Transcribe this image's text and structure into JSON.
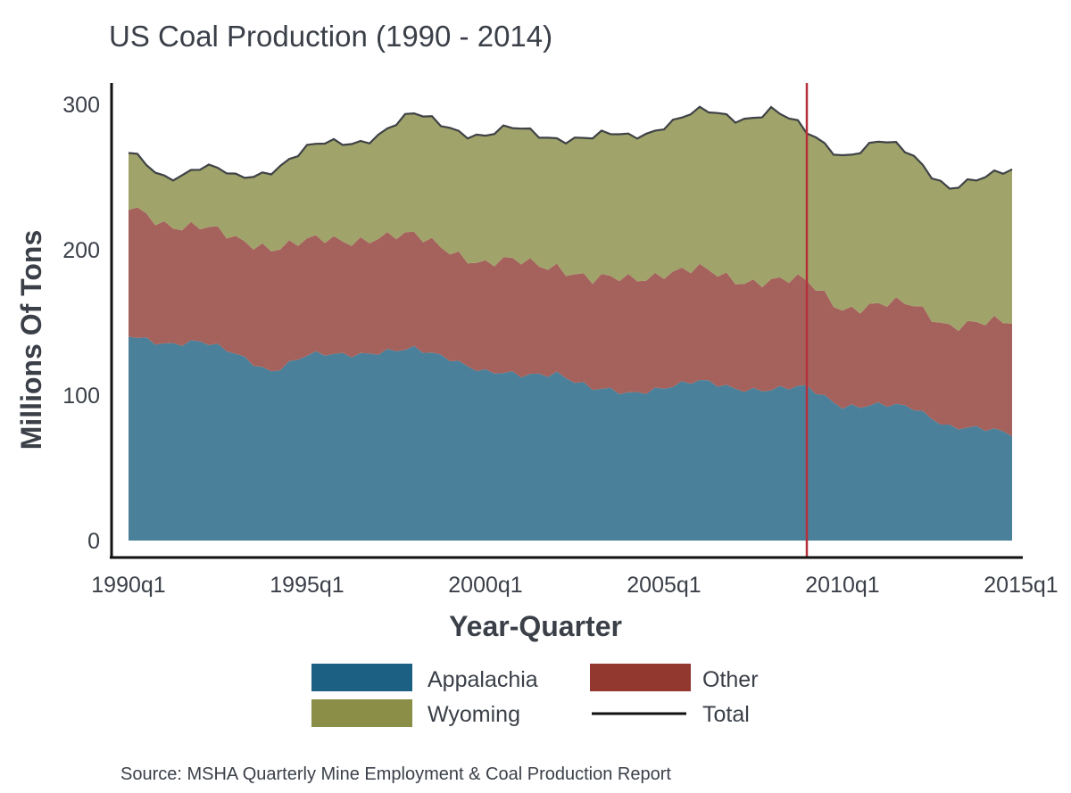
{
  "chart_data": {
    "type": "area",
    "title": "US Coal Production (1990 - 2014)",
    "xlabel": "Year-Quarter",
    "ylabel": "Millions Of Tons",
    "ylim": [
      0,
      315
    ],
    "yticks": [
      0,
      100,
      200,
      300
    ],
    "xticks": [
      {
        "label": "1990q1",
        "year": 1990
      },
      {
        "label": "1995q1",
        "year": 1995
      },
      {
        "label": "2000q1",
        "year": 2000
      },
      {
        "label": "2005q1",
        "year": 2005
      },
      {
        "label": "2010q1",
        "year": 2010
      },
      {
        "label": "2015q1",
        "year": 2015
      }
    ],
    "x_start_year": 1990,
    "x_end_year": 2015,
    "marker_line": {
      "year": 2009,
      "color": "#b5303a"
    },
    "colors": {
      "appalachia": "#4a8099",
      "other": "#a5625c",
      "wyoming": "#a0a46a",
      "total": "#3f4246",
      "legend_appalachia": "#1c6184",
      "legend_other": "#93382f",
      "legend_wyoming": "#8b8e47",
      "legend_total": "#111111"
    },
    "anchors": {
      "appalachia": [
        [
          1990,
          140
        ],
        [
          1991,
          136
        ],
        [
          1992,
          137
        ],
        [
          1993,
          128
        ],
        [
          1994,
          117
        ],
        [
          1995,
          127
        ],
        [
          1996,
          128
        ],
        [
          1997,
          130
        ],
        [
          1998,
          131
        ],
        [
          1999,
          126
        ],
        [
          2000,
          116
        ],
        [
          2001,
          113
        ],
        [
          2002,
          116
        ],
        [
          2003,
          104
        ],
        [
          2004,
          101
        ],
        [
          2005,
          106
        ],
        [
          2006,
          109
        ],
        [
          2007,
          105
        ],
        [
          2008,
          104
        ],
        [
          2009,
          105
        ],
        [
          2010,
          93
        ],
        [
          2011,
          93
        ],
        [
          2012,
          91
        ],
        [
          2013,
          79
        ],
        [
          2014,
          76
        ],
        [
          2014.75,
          73
        ]
      ],
      "other": [
        [
          1990,
          88
        ],
        [
          1991,
          83
        ],
        [
          1992,
          79
        ],
        [
          1993,
          78
        ],
        [
          1994,
          86
        ],
        [
          1995,
          78
        ],
        [
          1996,
          78
        ],
        [
          1997,
          80
        ],
        [
          1998,
          77
        ],
        [
          1999,
          75
        ],
        [
          2000,
          74
        ],
        [
          2001,
          78
        ],
        [
          2002,
          74
        ],
        [
          2003,
          74
        ],
        [
          2004,
          79
        ],
        [
          2005,
          79
        ],
        [
          2006,
          76
        ],
        [
          2007,
          75
        ],
        [
          2008,
          75
        ],
        [
          2009,
          72
        ],
        [
          2010,
          68
        ],
        [
          2011,
          68
        ],
        [
          2012,
          71
        ],
        [
          2013,
          70
        ],
        [
          2014,
          72
        ],
        [
          2014.75,
          77
        ]
      ],
      "wyoming": [
        [
          1990,
          36
        ],
        [
          1991,
          34
        ],
        [
          1992,
          40
        ],
        [
          1993,
          42
        ],
        [
          1994,
          55
        ],
        [
          1995,
          62
        ],
        [
          1996,
          68
        ],
        [
          1997,
          71
        ],
        [
          1998,
          82
        ],
        [
          1999,
          86
        ],
        [
          2000,
          88
        ],
        [
          2001,
          90
        ],
        [
          2002,
          90
        ],
        [
          2003,
          97
        ],
        [
          2004,
          98
        ],
        [
          2005,
          103
        ],
        [
          2006,
          107
        ],
        [
          2007,
          112
        ],
        [
          2008,
          118
        ],
        [
          2009,
          101
        ],
        [
          2010,
          107
        ],
        [
          2011,
          112
        ],
        [
          2012,
          101
        ],
        [
          2013,
          97
        ],
        [
          2014,
          98
        ],
        [
          2014.75,
          104
        ]
      ]
    },
    "noise_amplitude": {
      "appalachia": 3,
      "other": 4,
      "wyoming": 4
    },
    "legend": {
      "appalachia": "Appalachia",
      "other": "Other",
      "wyoming": "Wyoming",
      "total": "Total"
    },
    "source": "Source: MSHA Quarterly Mine Employment & Coal Production Report"
  }
}
